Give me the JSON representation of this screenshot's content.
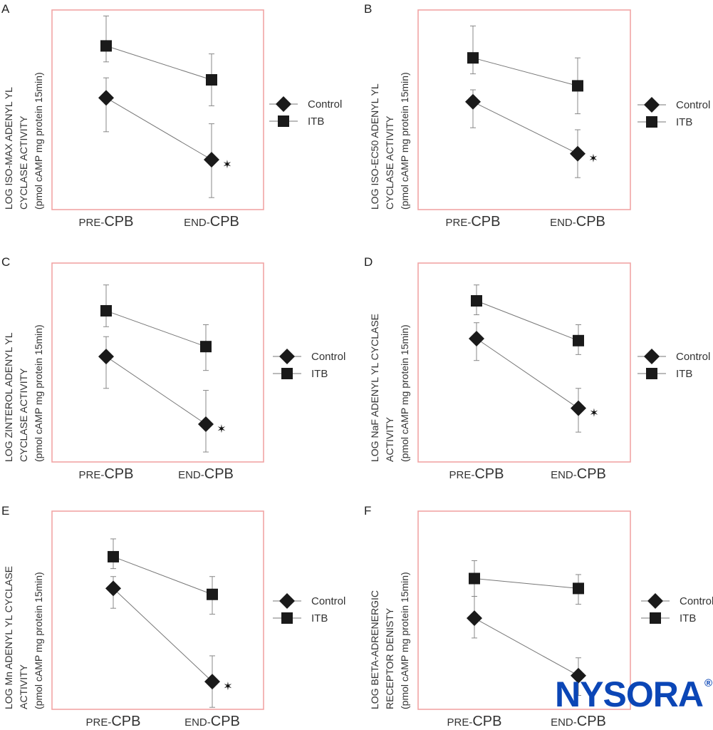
{
  "chart_data": [
    {
      "panel": "A",
      "type": "line",
      "ylabel_lines": [
        "LOG ISO-MAX ADENYL YL",
        "CYCLASE ACTIVITY",
        "(pmol cAMP mg protein 15min)"
      ],
      "categories": [
        "PRE-CPB",
        "END-CPB"
      ],
      "ylim": [
        0,
        10
      ],
      "series": [
        {
          "name": "Control",
          "marker": "diamond",
          "values": [
            5.6,
            2.5
          ],
          "err_low": [
            3.9,
            0.6
          ],
          "err_high": [
            6.6,
            4.3
          ]
        },
        {
          "name": "ITB",
          "marker": "square",
          "values": [
            8.2,
            6.5
          ],
          "err_low": [
            7.4,
            5.2
          ],
          "err_high": [
            9.7,
            7.8
          ]
        }
      ],
      "annotations": [
        {
          "text": "✶",
          "series": "Control",
          "category": "END-CPB",
          "meaning": "significant"
        }
      ],
      "legend": "right"
    },
    {
      "panel": "B",
      "type": "line",
      "ylabel_lines": [
        "LOG ISO-EC50 ADENYL YL",
        "CYCLASE ACTIVITY",
        "(pmol cAMP mg protein 15min)"
      ],
      "categories": [
        "PRE-CPB",
        "END-CPB"
      ],
      "ylim": [
        0,
        10
      ],
      "series": [
        {
          "name": "Control",
          "marker": "diamond",
          "values": [
            5.4,
            2.8
          ],
          "err_low": [
            4.1,
            1.6
          ],
          "err_high": [
            6.0,
            4.0
          ]
        },
        {
          "name": "ITB",
          "marker": "square",
          "values": [
            7.6,
            6.2
          ],
          "err_low": [
            6.8,
            4.8
          ],
          "err_high": [
            9.2,
            7.6
          ]
        }
      ],
      "annotations": [
        {
          "text": "✶",
          "series": "Control",
          "category": "END-CPB",
          "meaning": "significant"
        }
      ],
      "legend": "right"
    },
    {
      "panel": "C",
      "type": "line",
      "ylabel_lines": [
        "LOG ZINTEROL ADENYL YL",
        "CYCLASE ACTIVITY",
        "(pmol cAMP mg protein 15min)"
      ],
      "categories": [
        "PRE-CPB",
        "END-CPB"
      ],
      "ylim": [
        0,
        10
      ],
      "series": [
        {
          "name": "Control",
          "marker": "diamond",
          "values": [
            5.3,
            1.9
          ],
          "err_low": [
            3.7,
            0.5
          ],
          "err_high": [
            6.3,
            3.6
          ]
        },
        {
          "name": "ITB",
          "marker": "square",
          "values": [
            7.6,
            5.8
          ],
          "err_low": [
            6.8,
            4.6
          ],
          "err_high": [
            8.9,
            6.9
          ]
        }
      ],
      "annotations": [
        {
          "text": "✶",
          "series": "Control",
          "category": "END-CPB",
          "meaning": "significant"
        }
      ],
      "legend": "right"
    },
    {
      "panel": "D",
      "type": "line",
      "ylabel_lines": [
        "LOG NaF ADENYL YL CYCLASE",
        "ACTIVITY",
        "(pmol cAMP mg protein 15min)"
      ],
      "categories": [
        "PRE-CPB",
        "END-CPB"
      ],
      "ylim": [
        0,
        10
      ],
      "series": [
        {
          "name": "Control",
          "marker": "diamond",
          "values": [
            6.2,
            2.7
          ],
          "err_low": [
            5.1,
            1.5
          ],
          "err_high": [
            7.0,
            3.7
          ]
        },
        {
          "name": "ITB",
          "marker": "square",
          "values": [
            8.1,
            6.1
          ],
          "err_low": [
            7.4,
            5.4
          ],
          "err_high": [
            8.9,
            6.9
          ]
        }
      ],
      "annotations": [
        {
          "text": "✶",
          "series": "Control",
          "category": "END-CPB",
          "meaning": "significant"
        }
      ],
      "legend": "right"
    },
    {
      "panel": "E",
      "type": "line",
      "ylabel_lines": [
        "LOG Mn ADENYL YL CYCLASE",
        "ACTIVITY",
        "(pmol cAMP mg protein 15min)"
      ],
      "categories": [
        "PRE-CPB",
        "END-CPB"
      ],
      "ylim": [
        0,
        10
      ],
      "series": [
        {
          "name": "Control",
          "marker": "diamond",
          "values": [
            6.1,
            1.4
          ],
          "err_low": [
            5.1,
            0.1
          ],
          "err_high": [
            6.7,
            2.7
          ]
        },
        {
          "name": "ITB",
          "marker": "square",
          "values": [
            7.7,
            5.8
          ],
          "err_low": [
            7.1,
            4.8
          ],
          "err_high": [
            8.6,
            6.7
          ]
        }
      ],
      "annotations": [
        {
          "text": "✶",
          "series": "Control",
          "category": "END-CPB",
          "meaning": "significant"
        }
      ],
      "legend": "right"
    },
    {
      "panel": "F",
      "type": "line",
      "ylabel_lines": [
        "LOG BETA-ADRENERGIC",
        "RECEPTOR DENISTY",
        "(pmol cAMP mg protein 15min)"
      ],
      "categories": [
        "PRE-CPB",
        "END-CPB"
      ],
      "ylim": [
        0,
        10
      ],
      "series": [
        {
          "name": "Control",
          "marker": "diamond",
          "values": [
            4.6,
            1.7
          ],
          "err_low": [
            3.6,
            0.7
          ],
          "err_high": [
            5.7,
            2.6
          ]
        },
        {
          "name": "ITB",
          "marker": "square",
          "values": [
            6.6,
            6.1
          ],
          "err_low": [
            5.7,
            5.3
          ],
          "err_high": [
            7.5,
            6.8
          ]
        }
      ],
      "annotations": [],
      "legend": "right"
    }
  ],
  "x_label_parts": {
    "pre_small": "PRE-",
    "end_small": "END-",
    "suffix": "CPB"
  },
  "colors": {
    "frame": "#f2a5a5",
    "marker": "#1a1a1a",
    "line": "#777777",
    "logo": "#0b46b6"
  },
  "watermark": {
    "text": "NYSORA",
    "mark": "®"
  }
}
